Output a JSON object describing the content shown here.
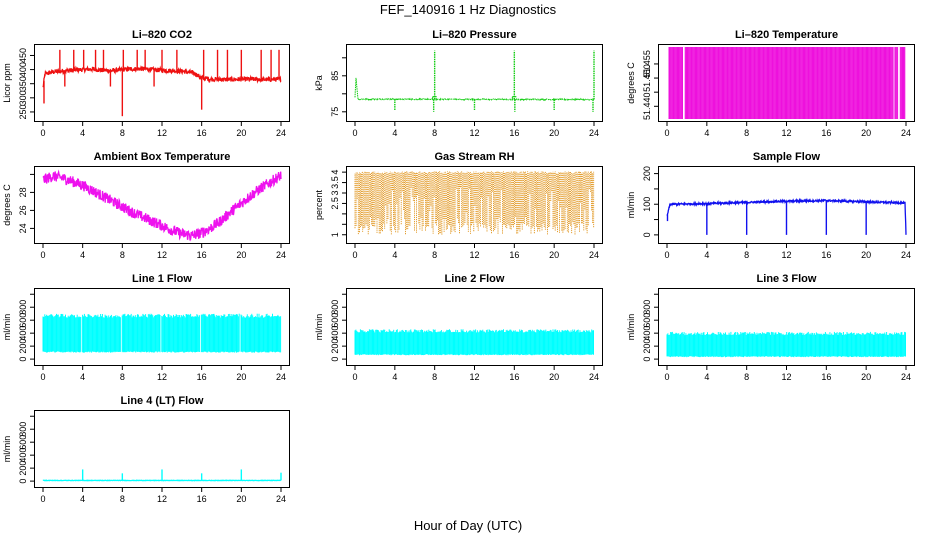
{
  "figure": {
    "title": "FEF_140916  1 Hz Diagnostics",
    "xlabel": "Hour of Day (UTC)"
  },
  "chart_data": [
    {
      "type": "line",
      "title": "Li–820 CO2",
      "ylabel": "Licor ppm",
      "color": "#ee1111",
      "xlim": [
        0,
        24
      ],
      "ylim": [
        225,
        480
      ],
      "xticks": [
        0,
        4,
        8,
        12,
        16,
        20,
        24
      ],
      "yticks": [
        250,
        300,
        350,
        400,
        450
      ],
      "series": [
        {
          "x": [
            0,
            0.2,
            1,
            2,
            3,
            4,
            5,
            6,
            7,
            8,
            9,
            10,
            11,
            12,
            13,
            14,
            15,
            15.5,
            16,
            17,
            18,
            19,
            20,
            21,
            22,
            23,
            24
          ],
          "values": [
            335,
            385,
            392,
            395,
            398,
            400,
            402,
            398,
            396,
            400,
            402,
            403,
            400,
            398,
            396,
            394,
            390,
            382,
            370,
            366,
            365,
            365,
            366,
            366,
            365,
            365,
            365
          ]
        }
      ],
      "spikes": [
        {
          "x": 0.1,
          "value": 280
        },
        {
          "x": 1.7,
          "value": 470
        },
        {
          "x": 2.2,
          "value": 340
        },
        {
          "x": 3.1,
          "value": 470
        },
        {
          "x": 4.1,
          "value": 470
        },
        {
          "x": 5.3,
          "value": 470
        },
        {
          "x": 6.1,
          "value": 470
        },
        {
          "x": 6.8,
          "value": 340
        },
        {
          "x": 8.0,
          "value": 235
        },
        {
          "x": 8.1,
          "value": 470
        },
        {
          "x": 9.5,
          "value": 470
        },
        {
          "x": 10.3,
          "value": 470
        },
        {
          "x": 11.2,
          "value": 340
        },
        {
          "x": 12.0,
          "value": 470
        },
        {
          "x": 13.5,
          "value": 470
        },
        {
          "x": 16.0,
          "value": 258
        },
        {
          "x": 16.2,
          "value": 470
        },
        {
          "x": 17.6,
          "value": 470
        },
        {
          "x": 18.6,
          "value": 470
        },
        {
          "x": 20.0,
          "value": 470
        },
        {
          "x": 22.0,
          "value": 470
        },
        {
          "x": 23.0,
          "value": 470
        },
        {
          "x": 23.8,
          "value": 470
        }
      ],
      "noise": 8
    },
    {
      "type": "line",
      "title": "Li–820 Pressure",
      "ylabel": "kPa",
      "color": "#11cc11",
      "dotted": true,
      "xlim": [
        0,
        24
      ],
      "ylim": [
        73,
        93
      ],
      "xticks": [
        0,
        4,
        8,
        12,
        16,
        20,
        24
      ],
      "yticks": [
        75,
        80,
        85,
        90
      ],
      "ytick_labels_show": [
        75,
        85
      ],
      "series": [
        {
          "x": [
            0,
            0.1,
            0.3,
            24
          ],
          "values": [
            79,
            84.5,
            78.5,
            78.4
          ]
        }
      ],
      "spikes": [
        {
          "x": 4.0,
          "value": 75.5
        },
        {
          "x": 7.9,
          "value": 75
        },
        {
          "x": 8.0,
          "value": 92
        },
        {
          "x": 12.0,
          "value": 75.5
        },
        {
          "x": 16.0,
          "value": 92
        },
        {
          "x": 16.05,
          "value": 75
        },
        {
          "x": 20.0,
          "value": 75.5
        },
        {
          "x": 23.9,
          "value": 75
        },
        {
          "x": 24.0,
          "value": 92
        }
      ],
      "bumps": [
        {
          "x": 8,
          "value": 79.2
        },
        {
          "x": 16,
          "value": 79.2
        }
      ],
      "noise": 0.15
    },
    {
      "type": "bar",
      "title": "Li–820 Temperature",
      "ylabel": "degrees C",
      "color": "#ee11dd",
      "xlim": [
        0,
        24
      ],
      "ylim": [
        51.4355,
        51.461
      ],
      "xticks": [
        0,
        4,
        8,
        12,
        16,
        20,
        24
      ],
      "yticks": [
        51.44,
        51.445,
        51.45,
        51.455
      ],
      "ytick_labels_show": [
        51.44,
        51.45,
        51.455
      ],
      "band": {
        "from": 0.2,
        "to": 23.9,
        "low": 51.4355,
        "high": 51.461
      },
      "gaps": [
        1.7,
        22.8,
        23.3
      ]
    },
    {
      "type": "line",
      "title": "Ambient Box Temperature",
      "ylabel": "degrees C",
      "color": "#ee11ee",
      "xlim": [
        0,
        24
      ],
      "ylim": [
        22.6,
        30.6
      ],
      "xticks": [
        0,
        4,
        8,
        12,
        16,
        20,
        24
      ],
      "yticks": [
        24,
        26,
        28,
        30
      ],
      "ytick_labels_show": [
        24,
        26,
        28
      ],
      "series": [
        {
          "x": [
            0,
            1,
            2,
            3,
            4,
            5,
            6,
            7,
            8,
            9,
            10,
            11,
            12,
            13,
            14,
            15,
            16,
            17,
            18,
            19,
            20,
            21,
            22,
            23,
            24
          ],
          "values": [
            29.4,
            29.8,
            29.6,
            29.2,
            28.8,
            28.2,
            27.6,
            27.0,
            26.4,
            25.8,
            25.3,
            24.8,
            24.3,
            23.8,
            23.4,
            23.2,
            23.5,
            24.1,
            24.9,
            25.9,
            26.8,
            27.7,
            28.5,
            29.2,
            29.9
          ]
        }
      ],
      "noise": 0.6
    },
    {
      "type": "scatter",
      "title": "Gas Stream RH",
      "ylabel": "percent",
      "color": "#dd8800",
      "xlim": [
        0,
        24
      ],
      "ylim": [
        0.7,
        4.15
      ],
      "xticks": [
        0,
        4,
        8,
        12,
        16,
        20,
        24
      ],
      "yticks": [
        1.0,
        1.5,
        2.0,
        2.5,
        3.0,
        3.5,
        4.0
      ],
      "ytick_labels_show": [
        1.0,
        2.5,
        3.0,
        3.5,
        4.0
      ],
      "band": {
        "from": 0,
        "to": 24,
        "low": 1.0,
        "high": 4.05
      },
      "noise": 0.5
    },
    {
      "type": "line",
      "title": "Sample Flow",
      "ylabel": "ml/min",
      "color": "#1111ee",
      "xlim": [
        0,
        24
      ],
      "ylim": [
        -20,
        215
      ],
      "xticks": [
        0,
        4,
        8,
        12,
        16,
        20,
        24
      ],
      "yticks": [
        0,
        50,
        100,
        150,
        200
      ],
      "ytick_labels_show": [
        0,
        100,
        200
      ],
      "series": [
        {
          "x": [
            0,
            0.3,
            4,
            8,
            12,
            16,
            20,
            23.9,
            24
          ],
          "values": [
            60,
            100,
            102,
            106,
            110,
            112,
            108,
            104,
            0
          ]
        }
      ],
      "spikes": [
        {
          "x": 0.05,
          "value": 45
        },
        {
          "x": 4.0,
          "value": 0
        },
        {
          "x": 8.0,
          "value": 0
        },
        {
          "x": 12.0,
          "value": 0
        },
        {
          "x": 16.0,
          "value": 0
        },
        {
          "x": 20.0,
          "value": 0
        },
        {
          "x": 24.0,
          "value": 0
        }
      ],
      "noise": 3
    },
    {
      "type": "bar",
      "title": "Line 1 Flow",
      "ylabel": "ml/min",
      "color": "#00ffff",
      "xlim": [
        0,
        24
      ],
      "ylim": [
        -60,
        1050
      ],
      "xticks": [
        0,
        4,
        8,
        12,
        16,
        20,
        24
      ],
      "yticks": [
        0,
        200,
        400,
        600,
        800,
        1000
      ],
      "ytick_labels_show": [
        0,
        200,
        400,
        600,
        800
      ],
      "band": {
        "from": 0,
        "to": 24,
        "low": 100,
        "high": 700
      },
      "gaps": [
        3.9,
        7.9,
        11.9,
        15.9,
        19.9
      ],
      "noise": 60
    },
    {
      "type": "bar",
      "title": "Line 2 Flow",
      "ylabel": "ml/min",
      "color": "#00ffff",
      "xlim": [
        0,
        24
      ],
      "ylim": [
        -60,
        1050
      ],
      "xticks": [
        0,
        4,
        8,
        12,
        16,
        20,
        24
      ],
      "yticks": [
        0,
        200,
        400,
        600,
        800,
        1000
      ],
      "ytick_labels_show": [
        0,
        200,
        400,
        600,
        800
      ],
      "band": {
        "from": 0,
        "to": 24,
        "low": 60,
        "high": 460
      },
      "gaps": [],
      "noise": 50
    },
    {
      "type": "bar",
      "title": "Line 3 Flow",
      "ylabel": "ml/min",
      "color": "#00ffff",
      "xlim": [
        0,
        24
      ],
      "ylim": [
        -60,
        1050
      ],
      "xticks": [
        0,
        4,
        8,
        12,
        16,
        20,
        24
      ],
      "yticks": [
        0,
        200,
        400,
        600,
        800,
        1000
      ],
      "ytick_labels_show": [
        0,
        200,
        400,
        600,
        800
      ],
      "band": {
        "from": 0,
        "to": 24,
        "low": 30,
        "high": 420
      },
      "gaps": [],
      "noise": 50
    },
    {
      "type": "line",
      "title": "Line 4 (LT) Flow",
      "ylabel": "ml/min",
      "color": "#00ffff",
      "xlim": [
        0,
        24
      ],
      "ylim": [
        -60,
        1050
      ],
      "xticks": [
        0,
        4,
        8,
        12,
        16,
        20,
        24
      ],
      "yticks": [
        0,
        200,
        400,
        600,
        800,
        1000
      ],
      "ytick_labels_show": [
        0,
        200,
        400,
        600,
        800
      ],
      "series": [
        {
          "x": [
            0,
            24
          ],
          "values": [
            10,
            10
          ]
        }
      ],
      "spikes": [
        {
          "x": 4.0,
          "value": 180
        },
        {
          "x": 8.0,
          "value": 120
        },
        {
          "x": 12.0,
          "value": 180
        },
        {
          "x": 16.0,
          "value": 120
        },
        {
          "x": 20.0,
          "value": 180
        },
        {
          "x": 24.0,
          "value": 130
        }
      ],
      "noise": 3
    }
  ]
}
